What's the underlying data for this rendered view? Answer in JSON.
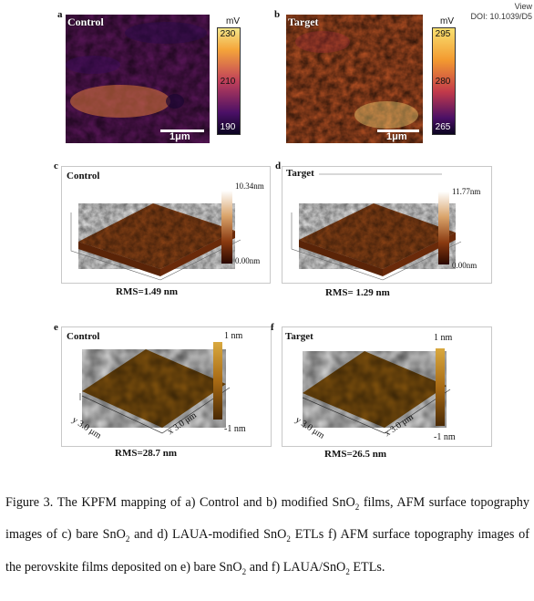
{
  "header": {
    "view": "View",
    "doi": "DOI: 10.1039/D5"
  },
  "kpfm": [
    {
      "label": "a",
      "title": "Control",
      "unit": "mV",
      "ticks": [
        "230",
        "210",
        "190"
      ],
      "scale": "1μm"
    },
    {
      "label": "b",
      "title": "Target",
      "unit": "mV",
      "ticks": [
        "295",
        "280",
        "265"
      ],
      "scale": "1μm"
    }
  ],
  "afm": [
    {
      "label": "c",
      "title": "Control",
      "max": "10.34nm",
      "min": "0.00nm",
      "rms": "RMS=1.49 nm"
    },
    {
      "label": "d",
      "title": "Target",
      "max": "11.77nm",
      "min": "0.00nm",
      "rms": "RMS= 1.29 nm"
    }
  ],
  "perovskite": [
    {
      "label": "e",
      "title": "Control",
      "max": "1 nm",
      "min": "-1 nm",
      "y_axis": "y 3.0 μm",
      "x_axis": "x 3.0 μm",
      "rms": "RMS=28.7 nm"
    },
    {
      "label": "f",
      "title": "Target",
      "max": "1 nm",
      "min": "-1 nm",
      "y_axis": "y 3.0 μm",
      "x_axis": "x 3.0 μm",
      "rms": "RMS=26.5 nm"
    }
  ],
  "caption": {
    "p1": "Figure 3. The KPFM mapping of a) Control and b) modified SnO",
    "p1_sub": "2",
    "p2": " films, AFM surface topography images of c) bare SnO",
    "p2_sub": "2",
    "p3": " and d) LAUA-modified SnO",
    "p3_sub": "2",
    "p4": " ETLs f) AFM surface topography images of the perovskite films deposited on e) bare SnO",
    "p4_sub": "2",
    "p5": " and f) LAUA/SnO",
    "p5_sub": "2",
    "p6": " ETLs."
  },
  "colors": {
    "inferno_dark": "#1a0a3a",
    "inferno_mid": "#b53f5a",
    "inferno_bright": "#f5c04a",
    "afm_brown": "#8b4513",
    "afm_gold": "#c8962a"
  }
}
